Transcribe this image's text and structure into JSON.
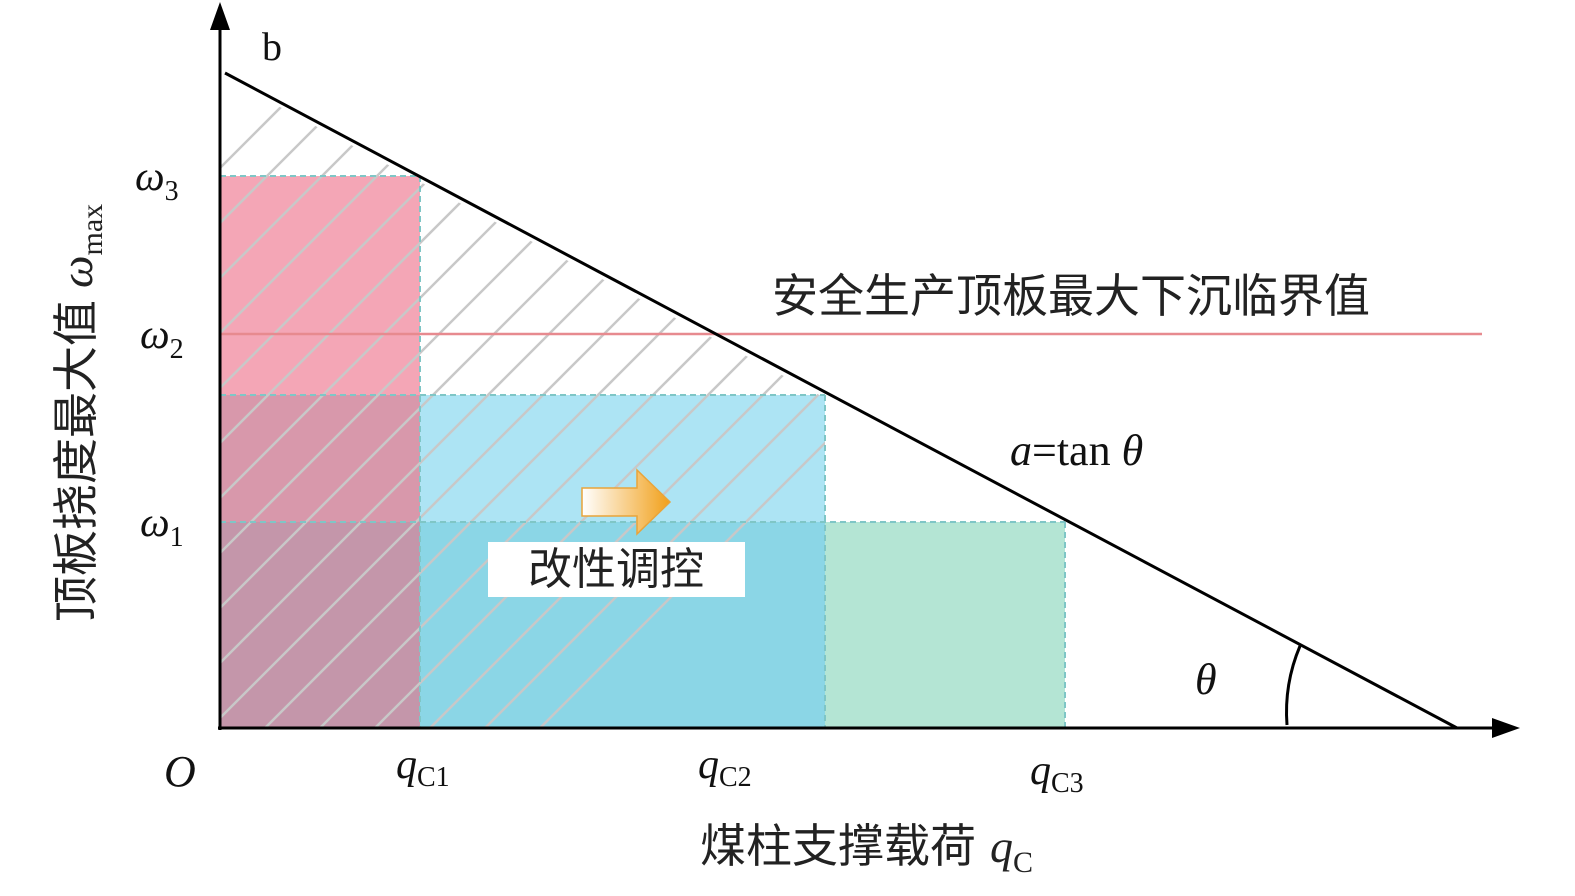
{
  "panel_label": "b",
  "origin_label": "O",
  "y_axis": {
    "title": "顶板挠度最大值",
    "symbol": "ω",
    "symbol_sub": "max",
    "ticks": [
      {
        "sym": "ω",
        "sub": "3"
      },
      {
        "sym": "ω",
        "sub": "2"
      },
      {
        "sym": "ω",
        "sub": "1"
      }
    ]
  },
  "x_axis": {
    "title": "煤柱支撑载荷",
    "symbol": "q",
    "symbol_sub": "C",
    "ticks": [
      {
        "sym": "q",
        "sub": "C1"
      },
      {
        "sym": "q",
        "sub": "C2"
      },
      {
        "sym": "q",
        "sub": "C3"
      }
    ]
  },
  "critical_line_label": "安全生产顶板最大下沉临界值",
  "slope_label": {
    "a": "a",
    "rest": "=tan ",
    "theta": "θ"
  },
  "angle_label": "θ",
  "control_label": "改性调控",
  "colors": {
    "pink": "#f4a6b6",
    "mauve": "#c496aa",
    "mauve_light": "#d898ab",
    "light_blue": "#ade4f4",
    "mid_blue": "#8bd6e6",
    "green": "#b4e5d4",
    "critical_line": "#e78a8f",
    "dashed": "#7fc6c6",
    "hatch": "#c8c8c8",
    "arrow_start": "#ffffff",
    "arrow_end": "#f1a01a"
  }
}
